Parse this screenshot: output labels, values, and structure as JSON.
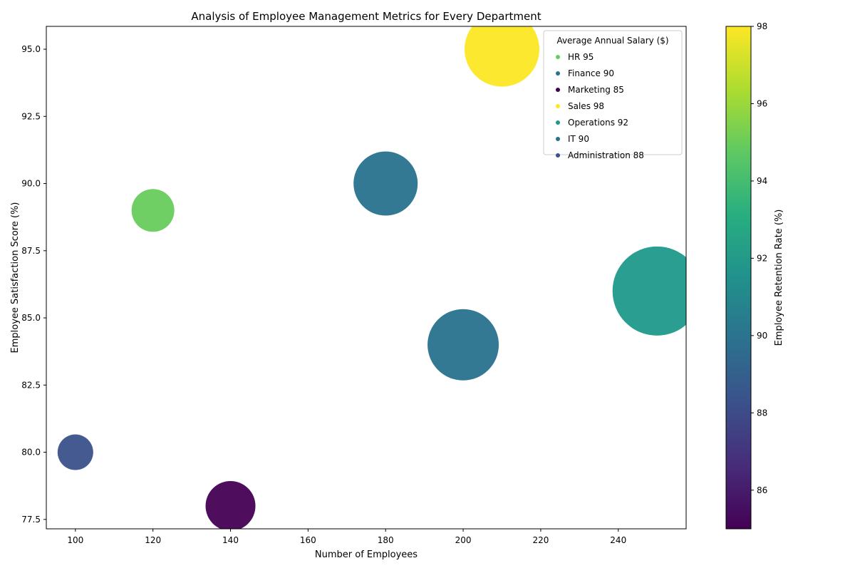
{
  "chart_data": {
    "type": "scatter",
    "title": "Analysis of Employee Management Metrics for Every Department",
    "xlabel": "Number of Employees",
    "ylabel": "Employee Satisfaction Score (%)",
    "colorbar_label": "Employee Retention Rate (%)",
    "legend_title": "Average Annual Salary ($)",
    "legend_placement": "top-right",
    "xlim": [
      92.5,
      257.5
    ],
    "ylim": [
      77.15,
      95.85
    ],
    "x_ticks": [
      "100",
      "120",
      "140",
      "160",
      "180",
      "200",
      "220",
      "240"
    ],
    "y_ticks": [
      "77.5",
      "80.0",
      "82.5",
      "85.0",
      "87.5",
      "90.0",
      "92.5",
      "95.0"
    ],
    "colorbar_range": [
      85,
      98
    ],
    "colorbar_ticks": [
      "86",
      "88",
      "90",
      "92",
      "94",
      "96",
      "98"
    ],
    "grid": false,
    "colormap": "viridis",
    "points": [
      {
        "department": "HR",
        "legend_label": "HR 95",
        "employees": 120,
        "satisfaction": 89,
        "retention": 95,
        "color": "#67cc5c"
      },
      {
        "department": "Finance",
        "legend_label": "Finance 90",
        "employees": 180,
        "satisfaction": 90,
        "retention": 90,
        "color": "#28728e"
      },
      {
        "department": "Marketing",
        "legend_label": "Marketing 85",
        "employees": 140,
        "satisfaction": 78,
        "retention": 85,
        "color": "#440154"
      },
      {
        "department": "Sales",
        "legend_label": "Sales 98",
        "employees": 210,
        "satisfaction": 95,
        "retention": 98,
        "color": "#fde725"
      },
      {
        "department": "Operations",
        "legend_label": "Operations 92",
        "employees": 250,
        "satisfaction": 86,
        "retention": 92,
        "color": "#1f998a"
      },
      {
        "department": "IT",
        "legend_label": "IT 90",
        "employees": 200,
        "satisfaction": 84,
        "retention": 90,
        "color": "#28728e"
      },
      {
        "department": "Administration",
        "legend_label": "Administration 88",
        "employees": 100,
        "satisfaction": 80,
        "retention": 88,
        "color": "#3b518b"
      }
    ]
  }
}
